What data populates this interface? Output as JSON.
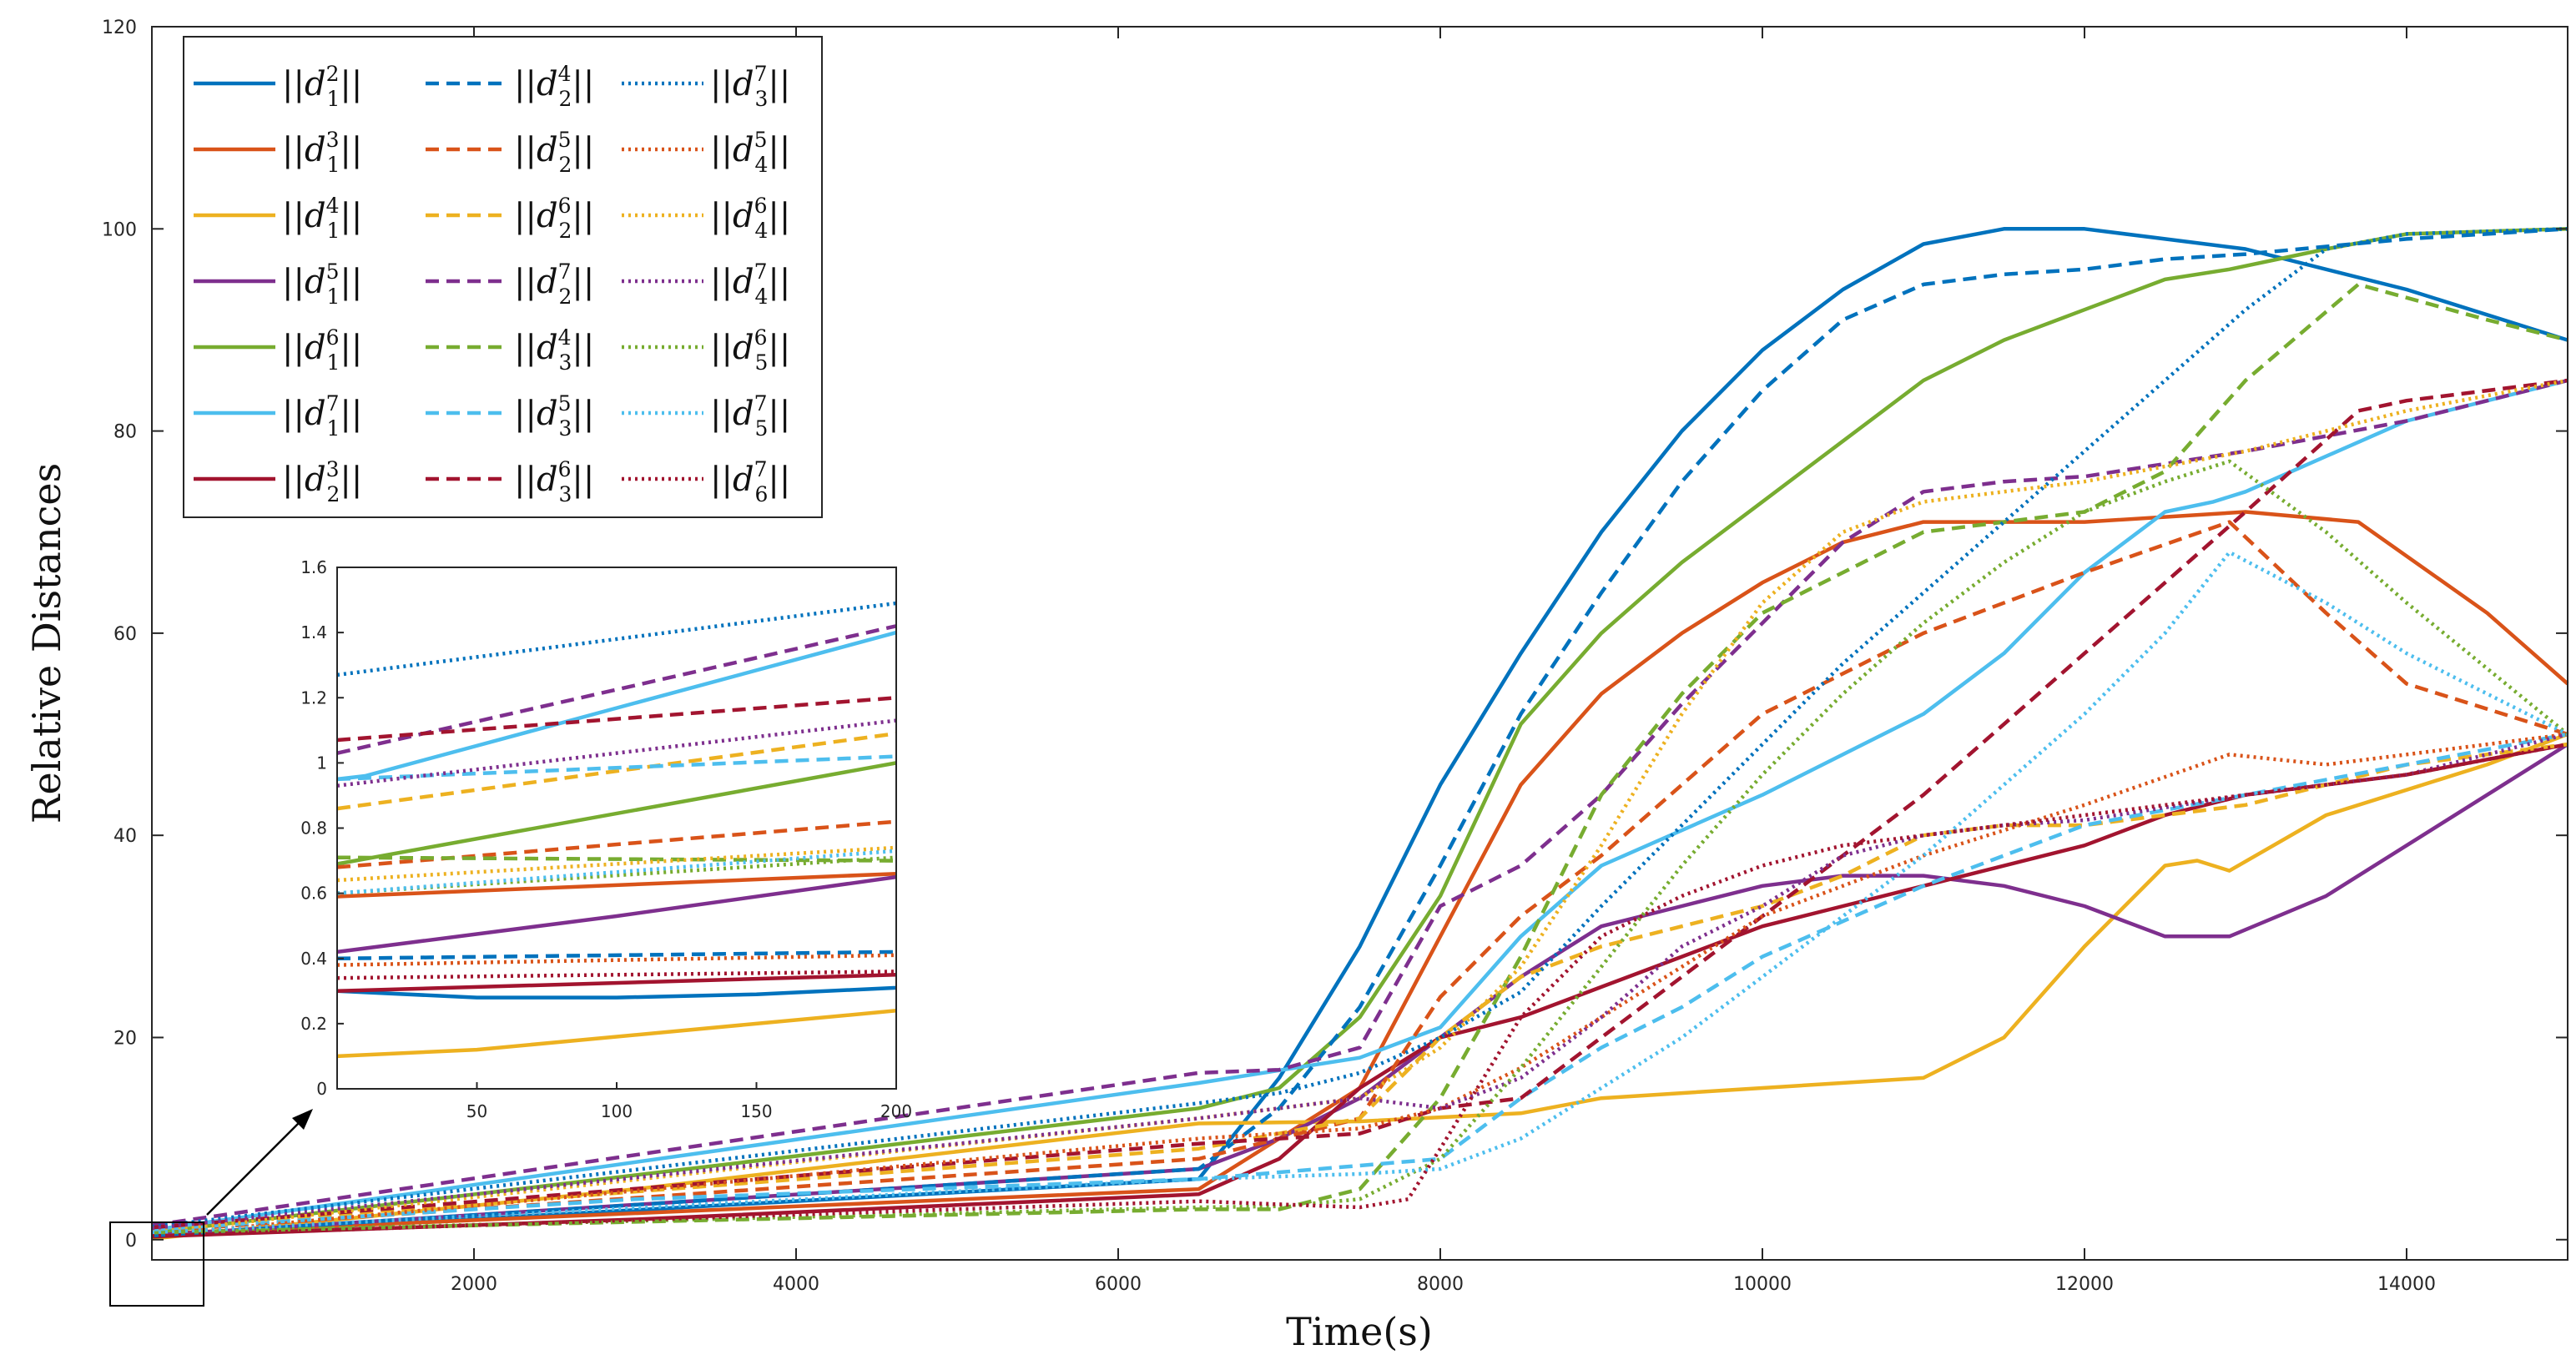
{
  "chart_data": {
    "type": "line",
    "xlabel": "Time(s)",
    "ylabel": "Relative Distances",
    "xlim": [
      0,
      15000
    ],
    "ylim": [
      -2,
      120
    ],
    "xticks": [
      "2000",
      "4000",
      "6000",
      "8000",
      "10000",
      "12000",
      "14000"
    ],
    "yticks": [
      "0",
      "20",
      "40",
      "60",
      "80",
      "100",
      "120"
    ],
    "legend_position": "top-left",
    "colors": {
      "blue": "#0072BD",
      "orange": "#D95319",
      "yellow": "#EDB120",
      "purple": "#7E2F8E",
      "green": "#77AC30",
      "cyan": "#4DBEEE",
      "red": "#A2142F"
    },
    "series": [
      {
        "name": "||d_1^2||",
        "sub": "1",
        "sup": "2",
        "color": "blue",
        "style": "solid",
        "x": [
          0,
          6500,
          7000,
          7500,
          8000,
          8500,
          9000,
          9500,
          10000,
          10500,
          11000,
          11500,
          12000,
          12500,
          13000,
          14000,
          15000
        ],
        "y": [
          0.3,
          6,
          16,
          29,
          45,
          58,
          70,
          80,
          88,
          94,
          98.5,
          100,
          100,
          99,
          98,
          94,
          89
        ]
      },
      {
        "name": "||d_1^3||",
        "sub": "1",
        "sup": "3",
        "color": "orange",
        "style": "solid",
        "x": [
          0,
          6500,
          7500,
          8000,
          8500,
          9000,
          9500,
          10000,
          10500,
          11000,
          11500,
          12000,
          13000,
          13700,
          14500,
          15000
        ],
        "y": [
          0.57,
          5,
          15,
          30,
          45,
          54,
          60,
          65,
          69,
          71,
          71,
          71,
          72,
          71,
          62,
          55
        ]
      },
      {
        "name": "||d_1^4||",
        "sub": "1",
        "sup": "4",
        "color": "yellow",
        "style": "solid",
        "x": [
          0,
          3000,
          6500,
          7500,
          8500,
          9000,
          10000,
          11000,
          11500,
          12000,
          12500,
          12700,
          12900,
          13500,
          14500,
          15000
        ],
        "y": [
          0.1,
          5,
          11.5,
          11.7,
          12.5,
          14,
          15,
          16,
          20,
          29,
          37,
          37.5,
          36.5,
          42,
          47,
          50
        ]
      },
      {
        "name": "||d_1^5||",
        "sub": "1",
        "sup": "5",
        "color": "purple",
        "style": "solid",
        "x": [
          0,
          6500,
          7000,
          7500,
          8000,
          8500,
          9000,
          9500,
          10000,
          10500,
          11000,
          11500,
          12000,
          12500,
          12900,
          13500,
          14000,
          14500,
          15000
        ],
        "y": [
          0.42,
          7,
          10,
          14,
          20,
          26,
          31,
          33,
          35,
          36,
          36,
          35,
          33,
          30,
          30,
          34,
          39,
          44,
          49
        ]
      },
      {
        "name": "||d_1^6||",
        "sub": "1",
        "sup": "6",
        "color": "green",
        "style": "solid",
        "x": [
          0,
          6500,
          7000,
          7500,
          8000,
          8500,
          9000,
          9500,
          10000,
          10500,
          11000,
          11500,
          12000,
          12500,
          12900,
          13500,
          14000,
          15000
        ],
        "y": [
          0.7,
          13,
          15,
          22,
          34,
          51,
          60,
          67,
          73,
          79,
          85,
          89,
          92,
          95,
          96,
          98,
          99.5,
          100
        ]
      },
      {
        "name": "||d_1^7||",
        "sub": "1",
        "sup": "7",
        "color": "cyan",
        "style": "solid",
        "x": [
          0,
          6500,
          7500,
          8000,
          8500,
          9000,
          10000,
          11000,
          11500,
          12000,
          12500,
          12800,
          13000,
          14000,
          15000
        ],
        "y": [
          0.95,
          15.5,
          18,
          21,
          30,
          37,
          44,
          52,
          58,
          66,
          72,
          73,
          74,
          81,
          85
        ]
      },
      {
        "name": "||d_2^3||",
        "sub": "2",
        "sup": "3",
        "color": "red",
        "style": "solid",
        "x": [
          0,
          3000,
          6500,
          7000,
          7500,
          8000,
          8500,
          9000,
          9500,
          10000,
          10500,
          11000,
          12000,
          12500,
          13000,
          14000,
          15000
        ],
        "y": [
          0.3,
          2,
          4.5,
          8,
          15,
          20,
          22,
          25,
          28,
          31,
          33,
          35,
          39,
          42,
          44,
          46,
          49
        ]
      },
      {
        "name": "||d_2^4||",
        "sub": "2",
        "sup": "4",
        "color": "blue",
        "style": "dash",
        "x": [
          0,
          6500,
          7000,
          7500,
          8000,
          8500,
          9000,
          9500,
          10000,
          10500,
          11000,
          11500,
          12000,
          12500,
          13000,
          14000,
          15000
        ],
        "y": [
          0.4,
          7,
          13,
          23,
          37,
          52,
          64,
          75,
          84,
          91,
          94.5,
          95.5,
          96,
          97,
          97.5,
          99,
          100
        ]
      },
      {
        "name": "||d_2^5||",
        "sub": "2",
        "sup": "5",
        "color": "orange",
        "style": "dash",
        "x": [
          0,
          6500,
          7500,
          8000,
          8500,
          9000,
          9500,
          10000,
          11000,
          12000,
          12900,
          13500,
          14000,
          15000
        ],
        "y": [
          0.82,
          8,
          12,
          24,
          32,
          38,
          45,
          52,
          60,
          66,
          71,
          62,
          55,
          50
        ]
      },
      {
        "name": "||d_2^6||",
        "sub": "2",
        "sup": "6",
        "color": "yellow",
        "style": "dash",
        "x": [
          0,
          6500,
          7500,
          8000,
          8500,
          9000,
          9500,
          10000,
          10500,
          11000,
          11500,
          12000,
          13000,
          14000,
          15000
        ],
        "y": [
          1.1,
          9,
          12,
          20,
          26,
          29,
          31,
          33,
          36,
          40,
          41,
          41,
          43,
          47,
          49
        ]
      },
      {
        "name": "||d_2^7||",
        "sub": "2",
        "sup": "7",
        "color": "purple",
        "style": "dash",
        "x": [
          0,
          6500,
          7000,
          7500,
          8000,
          8500,
          9000,
          9500,
          10000,
          10500,
          11000,
          11500,
          12000,
          13000,
          14000,
          15000
        ],
        "y": [
          1.42,
          16.5,
          16.8,
          19,
          33,
          37,
          44,
          53,
          61,
          69,
          74,
          75,
          75.5,
          78,
          81,
          85
        ]
      },
      {
        "name": "||d_3^4||",
        "sub": "3",
        "sup": "4",
        "color": "green",
        "style": "dash",
        "x": [
          0,
          6500,
          7000,
          7500,
          8000,
          8500,
          9000,
          9500,
          10000,
          11000,
          12000,
          12500,
          13000,
          13700,
          14500,
          15000
        ],
        "y": [
          0.7,
          3,
          3,
          5,
          14,
          28,
          44,
          54,
          62,
          70,
          72,
          76,
          85,
          94.5,
          91,
          89
        ]
      },
      {
        "name": "||d_3^5||",
        "sub": "3",
        "sup": "5",
        "color": "cyan",
        "style": "dash",
        "x": [
          0,
          3000,
          6500,
          8000,
          8500,
          9000,
          9500,
          10000,
          11000,
          12000,
          13000,
          14000,
          15000
        ],
        "y": [
          1.0,
          4,
          6,
          8,
          14,
          19,
          23,
          28,
          35,
          41,
          44,
          47,
          50
        ]
      },
      {
        "name": "||d_3^6||",
        "sub": "3",
        "sup": "6",
        "color": "red",
        "style": "dash",
        "x": [
          0,
          6500,
          7500,
          8000,
          8500,
          9000,
          9500,
          10000,
          10500,
          11000,
          11500,
          12000,
          12500,
          13000,
          13700,
          14000,
          15000
        ],
        "y": [
          1.2,
          9.5,
          10.5,
          13,
          14,
          20,
          26,
          32,
          38,
          44,
          51,
          58,
          65,
          72,
          82,
          83,
          85
        ]
      },
      {
        "name": "||d_3^7||",
        "sub": "3",
        "sup": "7",
        "color": "blue",
        "style": "dot",
        "x": [
          0,
          6500,
          7000,
          7500,
          8000,
          8500,
          9000,
          9500,
          10000,
          10500,
          11000,
          11500,
          12000,
          12500,
          13000,
          13500,
          14000,
          15000
        ],
        "y": [
          1.27,
          13.5,
          14.5,
          16.5,
          20,
          24.5,
          33,
          41,
          49,
          57,
          64,
          71,
          78,
          85,
          92,
          98,
          99.5,
          100
        ]
      },
      {
        "name": "||d_4^5||",
        "sub": "4",
        "sup": "5",
        "color": "orange",
        "style": "dot",
        "x": [
          0,
          6500,
          7500,
          8000,
          8500,
          9000,
          9500,
          10000,
          11000,
          12000,
          12900,
          13500,
          14000,
          15000
        ],
        "y": [
          0.42,
          10,
          11,
          13,
          17,
          22,
          27,
          32,
          38,
          43,
          48,
          47,
          48,
          50
        ]
      },
      {
        "name": "||d_4^6||",
        "sub": "4",
        "sup": "6",
        "color": "yellow",
        "style": "dot",
        "x": [
          0,
          6500,
          7500,
          8000,
          8500,
          9000,
          9500,
          10000,
          10500,
          11000,
          11500,
          12000,
          13000,
          14000,
          15000
        ],
        "y": [
          0.73,
          12,
          14,
          19,
          27,
          39,
          52,
          63,
          70,
          73,
          74,
          75,
          78,
          82,
          85
        ]
      },
      {
        "name": "||d_4^7||",
        "sub": "4",
        "sup": "7",
        "color": "purple",
        "style": "dot",
        "x": [
          0,
          6500,
          7000,
          7500,
          8000,
          8500,
          9000,
          9500,
          10000,
          10500,
          11000,
          11500,
          12000,
          13000,
          14000,
          15000
        ],
        "y": [
          1.13,
          12,
          13,
          14,
          13,
          16,
          22,
          29,
          33,
          38,
          40,
          41,
          41.5,
          44,
          46,
          50
        ]
      },
      {
        "name": "||d_5^6||",
        "sub": "5",
        "sup": "6",
        "color": "green",
        "style": "dot",
        "x": [
          0,
          6500,
          7000,
          7500,
          8000,
          8500,
          9000,
          9500,
          10000,
          10500,
          11000,
          11500,
          12000,
          12500,
          12900,
          13500,
          14000,
          15000
        ],
        "y": [
          0.7,
          3.2,
          3.3,
          4,
          8,
          17,
          27,
          37,
          46,
          54,
          61,
          67,
          72,
          75,
          77,
          70,
          63,
          50
        ]
      },
      {
        "name": "||d_5^7||",
        "sub": "5",
        "sup": "7",
        "color": "cyan",
        "style": "dot",
        "x": [
          0,
          6500,
          7500,
          8000,
          8500,
          9000,
          9500,
          10000,
          10500,
          11000,
          11500,
          12000,
          12500,
          12900,
          13500,
          14000,
          15000
        ],
        "y": [
          0.7,
          6,
          6.5,
          7,
          10,
          15,
          20,
          26,
          32,
          38,
          45,
          52,
          60,
          68,
          63,
          58,
          50
        ]
      },
      {
        "name": "||d_6^7||",
        "sub": "6",
        "sup": "7",
        "color": "red",
        "style": "dot",
        "x": [
          0,
          6500,
          7000,
          7500,
          7800,
          8000,
          8500,
          9000,
          9500,
          10000,
          10500,
          11000,
          11500,
          12000,
          13000,
          14000,
          15000
        ],
        "y": [
          0.36,
          3.8,
          3.5,
          3.2,
          4,
          9,
          22,
          30,
          34,
          37,
          39,
          40,
          41,
          42,
          44,
          46,
          49
        ]
      }
    ],
    "inset": {
      "xlim": [
        0,
        200
      ],
      "ylim": [
        0,
        1.6
      ],
      "xticks": [
        "50",
        "100",
        "150",
        "200"
      ],
      "yticks": [
        "0",
        "0.2",
        "0.4",
        "0.6",
        "0.8",
        "1",
        "1.2",
        "1.4",
        "1.6"
      ],
      "series": [
        {
          "ref": 0,
          "x": [
            0,
            50,
            100,
            150,
            200
          ],
          "y": [
            0.3,
            0.28,
            0.28,
            0.29,
            0.31
          ]
        },
        {
          "ref": 1,
          "x": [
            0,
            200
          ],
          "y": [
            0.59,
            0.66
          ]
        },
        {
          "ref": 2,
          "x": [
            0,
            50,
            100,
            150,
            200
          ],
          "y": [
            0.1,
            0.12,
            0.16,
            0.2,
            0.24
          ]
        },
        {
          "ref": 3,
          "x": [
            0,
            100,
            200
          ],
          "y": [
            0.42,
            0.53,
            0.65
          ]
        },
        {
          "ref": 4,
          "x": [
            0,
            200
          ],
          "y": [
            0.69,
            1.0
          ]
        },
        {
          "ref": 5,
          "x": [
            0,
            10,
            200
          ],
          "y": [
            0.95,
            0.96,
            1.4
          ]
        },
        {
          "ref": 6,
          "x": [
            0,
            200
          ],
          "y": [
            0.3,
            0.35
          ]
        },
        {
          "ref": 7,
          "x": [
            0,
            200
          ],
          "y": [
            0.4,
            0.42
          ]
        },
        {
          "ref": 8,
          "x": [
            0,
            200
          ],
          "y": [
            0.68,
            0.82
          ]
        },
        {
          "ref": 9,
          "x": [
            0,
            200
          ],
          "y": [
            0.86,
            1.09
          ]
        },
        {
          "ref": 10,
          "x": [
            0,
            200
          ],
          "y": [
            1.03,
            1.42
          ]
        },
        {
          "ref": 11,
          "x": [
            0,
            200
          ],
          "y": [
            0.71,
            0.7
          ]
        },
        {
          "ref": 12,
          "x": [
            0,
            200
          ],
          "y": [
            0.95,
            1.02
          ]
        },
        {
          "ref": 13,
          "x": [
            0,
            200
          ],
          "y": [
            1.07,
            1.2
          ]
        },
        {
          "ref": 14,
          "x": [
            0,
            200
          ],
          "y": [
            1.27,
            1.49
          ]
        },
        {
          "ref": 15,
          "x": [
            0,
            200
          ],
          "y": [
            0.38,
            0.41
          ]
        },
        {
          "ref": 16,
          "x": [
            0,
            200
          ],
          "y": [
            0.64,
            0.74
          ]
        },
        {
          "ref": 17,
          "x": [
            0,
            200
          ],
          "y": [
            0.93,
            1.13
          ]
        },
        {
          "ref": 18,
          "x": [
            0,
            200
          ],
          "y": [
            0.6,
            0.71
          ]
        },
        {
          "ref": 19,
          "x": [
            0,
            200
          ],
          "y": [
            0.6,
            0.73
          ]
        },
        {
          "ref": 20,
          "x": [
            0,
            200
          ],
          "y": [
            0.34,
            0.36
          ]
        }
      ]
    }
  }
}
